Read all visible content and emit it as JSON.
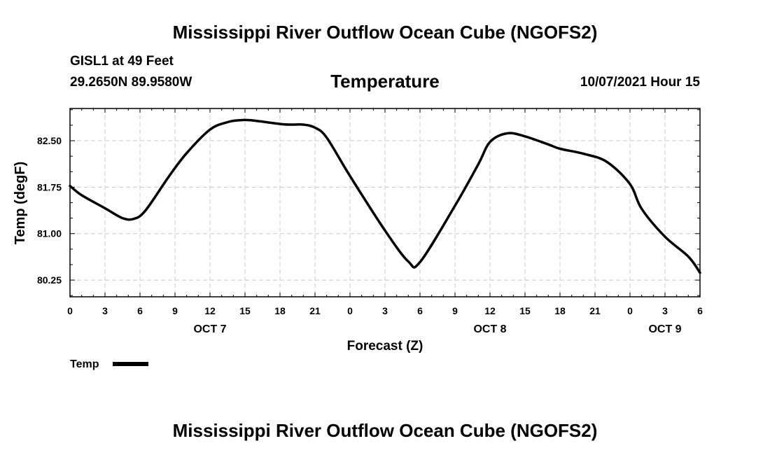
{
  "page": {
    "title_top": "Mississippi River Outflow Ocean Cube (NGOFS2)",
    "title_bottom": "Mississippi River Outflow Ocean Cube (NGOFS2)",
    "station": "GISL1 at 49 Feet",
    "coords": "29.2650N  89.9580W",
    "subtitle": "Temperature",
    "datetime": "10/07/2021 Hour 15"
  },
  "chart_data": {
    "type": "line",
    "title": "Temperature",
    "xlabel": "Forecast (Z)",
    "ylabel": "Temp (degF)",
    "xlim": [
      0,
      54
    ],
    "ylim": [
      79.98,
      83.02
    ],
    "yticks": [
      80.25,
      81.0,
      81.75,
      82.5
    ],
    "ytick_labels": [
      "80.25",
      "81.00",
      "81.75",
      "82.50"
    ],
    "xticks": [
      0,
      3,
      6,
      9,
      12,
      15,
      18,
      21,
      24,
      27,
      30,
      33,
      36,
      39,
      42,
      45,
      48,
      51,
      54
    ],
    "xtick_labels": [
      "0",
      "3",
      "6",
      "9",
      "12",
      "15",
      "18",
      "21",
      "0",
      "3",
      "6",
      "9",
      "12",
      "15",
      "18",
      "21",
      "0",
      "3",
      "6"
    ],
    "day_labels": [
      {
        "x": 12,
        "label": "OCT 7"
      },
      {
        "x": 36,
        "label": "OCT 8"
      },
      {
        "x": 51,
        "label": "OCT 9"
      }
    ],
    "grid": true,
    "legend": {
      "position": "bottom-left",
      "label": "Temp"
    },
    "series": [
      {
        "name": "Temp",
        "color": "#000000",
        "x": [
          0,
          1,
          3,
          4.5,
          5.5,
          6.5,
          8.5,
          10,
          12,
          13.5,
          14.5,
          15.5,
          18,
          19,
          20,
          21,
          22,
          24,
          27,
          29,
          30,
          33,
          35,
          36,
          37.5,
          39,
          41,
          42,
          44,
          46,
          48,
          49,
          51,
          53,
          54
        ],
        "values": [
          81.77,
          81.62,
          81.41,
          81.25,
          81.24,
          81.38,
          81.93,
          82.3,
          82.68,
          82.8,
          82.83,
          82.83,
          82.77,
          82.76,
          82.76,
          82.71,
          82.55,
          81.93,
          81.05,
          80.55,
          80.54,
          81.45,
          82.12,
          82.48,
          82.62,
          82.57,
          82.44,
          82.37,
          82.29,
          82.16,
          81.8,
          81.4,
          80.95,
          80.63,
          80.37
        ]
      }
    ]
  }
}
